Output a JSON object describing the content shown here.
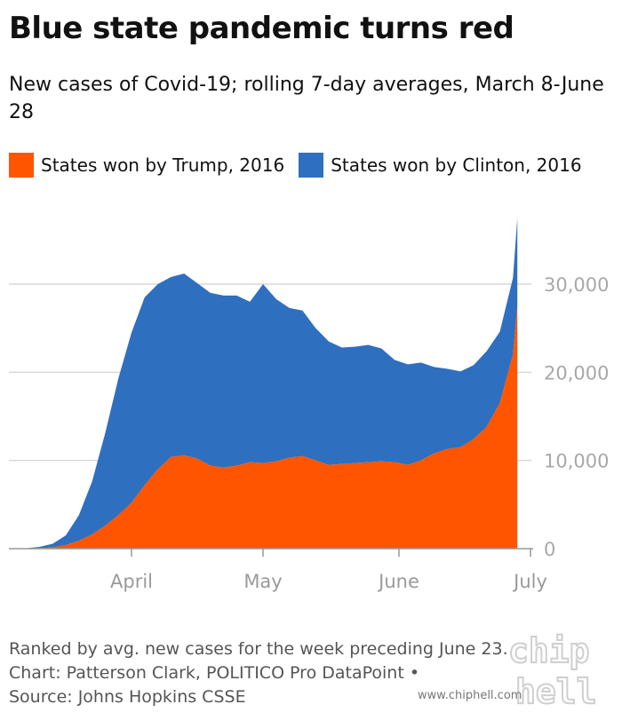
{
  "title": "Blue state pandemic turns red",
  "subtitle": "New cases of Covid-19; rolling 7-day averages, March 8-June 28",
  "legend": [
    {
      "label": "States won by Trump, 2016",
      "color": "#ff5500"
    },
    {
      "label": "States won by Clinton, 2016",
      "color": "#2f6fc0"
    }
  ],
  "footer": {
    "line1": "Ranked by avg. new cases for the week preceding June 23.",
    "line2": "Chart: Patterson Clark, POLITICO Pro DataPoint •",
    "line3": "Source: Johns Hopkins CSSE"
  },
  "watermark": {
    "text": "www.chiphell.com",
    "logo_lines": [
      "chip",
      "hell"
    ]
  },
  "chart_data": {
    "type": "area",
    "stacked": true,
    "x_label_ticks": [
      "April",
      "May",
      "June",
      "July"
    ],
    "y_ticks": [
      0,
      10000,
      20000,
      30000
    ],
    "y_tick_labels": [
      "0",
      "10,000",
      "20,000",
      "30,000"
    ],
    "ylim": [
      0,
      38000
    ],
    "y_axis_side": "right",
    "grid": true,
    "x": [
      "2020-03-08",
      "2020-03-11",
      "2020-03-14",
      "2020-03-17",
      "2020-03-20",
      "2020-03-23",
      "2020-03-26",
      "2020-03-29",
      "2020-04-01",
      "2020-04-04",
      "2020-04-07",
      "2020-04-10",
      "2020-04-13",
      "2020-04-16",
      "2020-04-19",
      "2020-04-22",
      "2020-04-25",
      "2020-04-28",
      "2020-05-01",
      "2020-05-04",
      "2020-05-07",
      "2020-05-10",
      "2020-05-13",
      "2020-05-16",
      "2020-05-19",
      "2020-05-22",
      "2020-05-25",
      "2020-05-28",
      "2020-05-31",
      "2020-06-03",
      "2020-06-06",
      "2020-06-09",
      "2020-06-12",
      "2020-06-15",
      "2020-06-18",
      "2020-06-21",
      "2020-06-24",
      "2020-06-27",
      "2020-06-28"
    ],
    "series": [
      {
        "name": "States won by Trump, 2016",
        "color": "#ff5500",
        "values": [
          0,
          50,
          150,
          400,
          900,
          1600,
          2600,
          3800,
          5200,
          7200,
          9000,
          10400,
          10600,
          10200,
          9400,
          9200,
          9400,
          9800,
          9700,
          9900,
          10300,
          10500,
          10000,
          9500,
          9600,
          9700,
          9800,
          9900,
          9800,
          9500,
          10000,
          10800,
          11300,
          11500,
          12400,
          13800,
          16500,
          22000,
          27500
        ]
      },
      {
        "name": "States won by Clinton, 2016",
        "color": "#2f6fc0",
        "values": [
          50,
          150,
          400,
          1100,
          2900,
          6000,
          10500,
          15500,
          19300,
          21300,
          21000,
          20400,
          20600,
          19900,
          19600,
          19500,
          19300,
          18200,
          20300,
          18400,
          17000,
          16500,
          15000,
          14000,
          13200,
          13200,
          13300,
          12800,
          11600,
          11400,
          11100,
          9800,
          9100,
          8600,
          8400,
          8600,
          8100,
          8700,
          10000
        ]
      }
    ]
  }
}
